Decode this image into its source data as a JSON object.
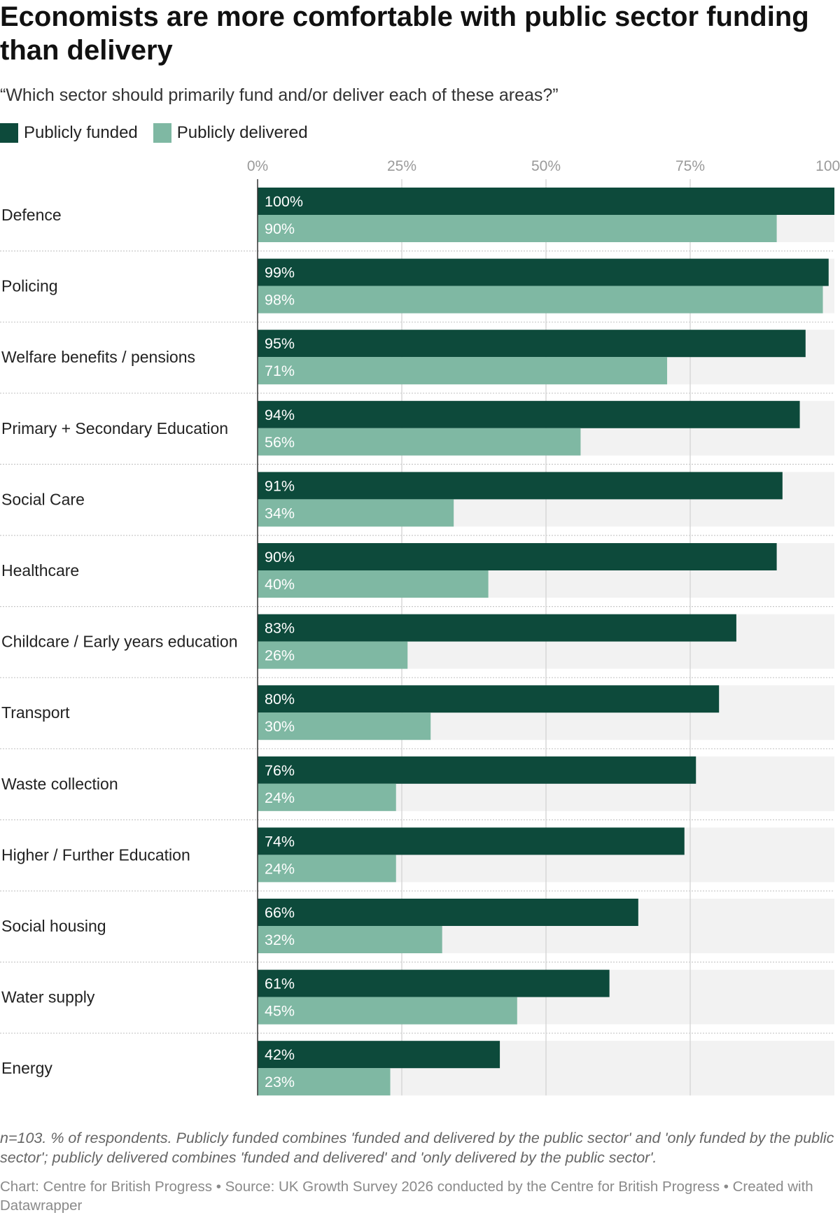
{
  "header": {
    "title": "Economists are more comfortable with public sector funding than delivery",
    "subtitle": "“Which sector should primarily fund and/or deliver each of these areas?”"
  },
  "legend": [
    {
      "label": "Publicly funded",
      "color": "#0d4a3b"
    },
    {
      "label": "Publicly delivered",
      "color": "#7fb8a3"
    }
  ],
  "footer": {
    "notes": "n=103. % of respondents. Publicly funded combines 'funded and delivered by the public sector' and 'only funded by the public sector'; publicly delivered combines 'funded and delivered' and 'only delivered by the public sector'.",
    "credit": "Chart: Centre for British Progress • Source: UK Growth Survey 2026 conducted by the Centre for British Progress • Created with Datawrapper"
  },
  "chart_data": {
    "type": "bar",
    "orientation": "horizontal",
    "title": "Economists are more comfortable with public sector funding than delivery",
    "subtitle": "“Which sector should primarily fund and/or deliver each of these areas?”",
    "xlim": [
      0,
      100
    ],
    "x_ticks": [
      "0%",
      "25%",
      "50%",
      "75%",
      "100%"
    ],
    "grid": true,
    "legend_position": "top-left",
    "categories": [
      "Defence",
      "Policing",
      "Welfare benefits / pensions",
      "Primary + Secondary Education",
      "Social Care",
      "Healthcare",
      "Childcare / Early years education",
      "Transport",
      "Waste collection",
      "Higher / Further Education",
      "Social housing",
      "Water supply",
      "Energy"
    ],
    "series": [
      {
        "name": "Publicly funded",
        "color": "#0d4a3b",
        "values": [
          100,
          99,
          95,
          94,
          91,
          90,
          83,
          80,
          76,
          74,
          66,
          61,
          42
        ]
      },
      {
        "name": "Publicly delivered",
        "color": "#7fb8a3",
        "values": [
          90,
          98,
          71,
          56,
          34,
          40,
          26,
          30,
          24,
          24,
          32,
          45,
          23
        ]
      }
    ]
  }
}
